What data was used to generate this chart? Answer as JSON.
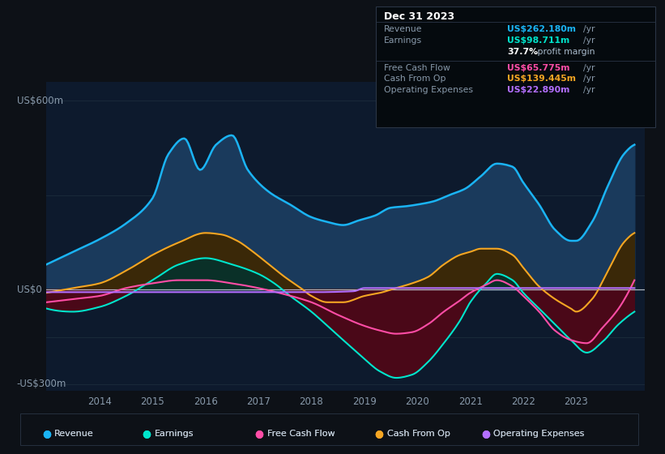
{
  "bg_color": "#0d1117",
  "plot_bg_color": "#0d1a2d",
  "grid_color": "#1a2a3a",
  "zero_line_color": "#c0c8d0",
  "ylabel_600": "US$600m",
  "ylabel_0": "US$0",
  "ylabel_neg300": "-US$300m",
  "ylim": [
    -320,
    660
  ],
  "xlim_start": 2013.0,
  "xlim_end": 2024.3,
  "xticks": [
    2014,
    2015,
    2016,
    2017,
    2018,
    2019,
    2020,
    2021,
    2022,
    2023
  ],
  "colors": {
    "revenue": "#1ab4f5",
    "revenue_fill": "#1a3a5c",
    "earnings": "#00e5cc",
    "earnings_fill_pos": "#1a5a4a",
    "earnings_fill_neg": "#6b1020",
    "free_cash_flow": "#ff4da6",
    "cash_from_op": "#f5a623",
    "cash_from_op_fill": "#4a3010",
    "operating_expenses": "#b36fff"
  },
  "info_box": {
    "date": "Dec 31 2023",
    "revenue": "US$262.180m",
    "earnings": "US$98.711m",
    "profit_margin": "37.7%",
    "free_cash_flow": "US$65.775m",
    "cash_from_op": "US$139.445m",
    "operating_expenses": "US$22.890m"
  },
  "legend": [
    {
      "label": "Revenue",
      "color": "#1ab4f5"
    },
    {
      "label": "Earnings",
      "color": "#00e5cc"
    },
    {
      "label": "Free Cash Flow",
      "color": "#ff4da6"
    },
    {
      "label": "Cash From Op",
      "color": "#f5a623"
    },
    {
      "label": "Operating Expenses",
      "color": "#b36fff"
    }
  ]
}
